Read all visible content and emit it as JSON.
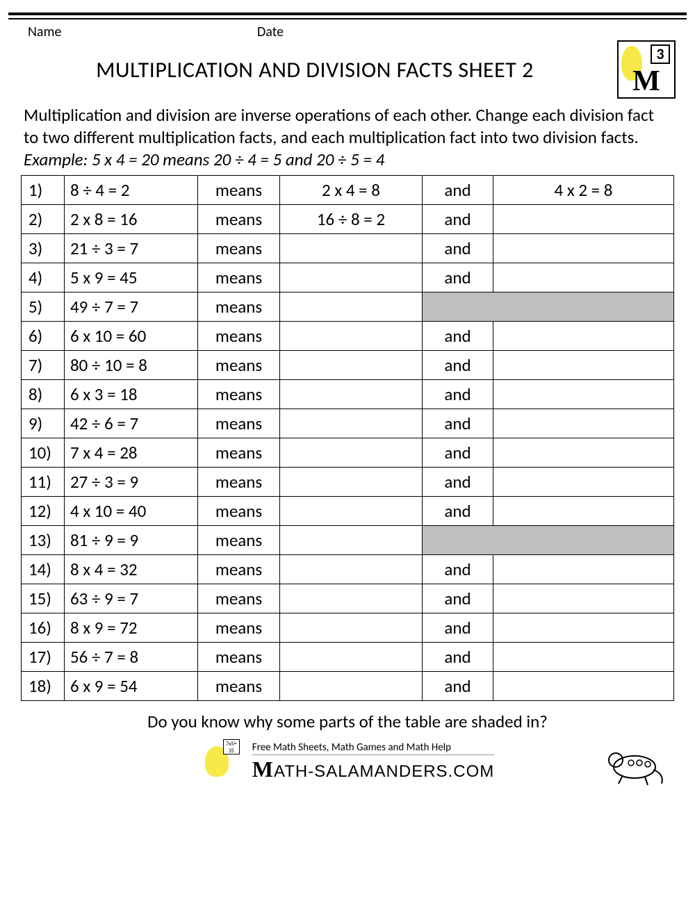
{
  "header": {
    "name_label": "Name",
    "date_label": "Date",
    "grade_number": "3"
  },
  "title": "MULTIPLICATION AND DIVISION FACTS SHEET 2",
  "instructions": {
    "text": "Multiplication and division are inverse operations of each other. Change each division fact to two different multiplication facts, and each multiplication fact into two division facts.",
    "example": "Example: 5 x 4 = 20 means 20 ÷ 4 = 5 and 20 ÷ 5 = 4"
  },
  "columns": {
    "means": "means",
    "and": "and"
  },
  "rows": [
    {
      "n": "1)",
      "fact": "8 ÷ 4 = 2",
      "a1": "2 x 4 = 8",
      "and": "and",
      "a2": "4 x 2 = 8",
      "shaded": false
    },
    {
      "n": "2)",
      "fact": "2 x 8 = 16",
      "a1": "16 ÷ 8 = 2",
      "and": "and",
      "a2": "",
      "shaded": false
    },
    {
      "n": "3)",
      "fact": "21 ÷ 3 = 7",
      "a1": "",
      "and": "and",
      "a2": "",
      "shaded": false
    },
    {
      "n": "4)",
      "fact": "5 x 9 = 45",
      "a1": "",
      "and": "and",
      "a2": "",
      "shaded": false
    },
    {
      "n": "5)",
      "fact": "49 ÷ 7 = 7",
      "a1": "",
      "and": "",
      "a2": "",
      "shaded": true
    },
    {
      "n": "6)",
      "fact": "6 x 10 = 60",
      "a1": "",
      "and": "and",
      "a2": "",
      "shaded": false
    },
    {
      "n": "7)",
      "fact": "80 ÷ 10 = 8",
      "a1": "",
      "and": "and",
      "a2": "",
      "shaded": false
    },
    {
      "n": "8)",
      "fact": "6 x 3 = 18",
      "a1": "",
      "and": "and",
      "a2": "",
      "shaded": false
    },
    {
      "n": "9)",
      "fact": "42 ÷ 6 = 7",
      "a1": "",
      "and": "and",
      "a2": "",
      "shaded": false
    },
    {
      "n": "10)",
      "fact": "7 x 4 = 28",
      "a1": "",
      "and": "and",
      "a2": "",
      "shaded": false
    },
    {
      "n": "11)",
      "fact": "27 ÷ 3 = 9",
      "a1": "",
      "and": "and",
      "a2": "",
      "shaded": false
    },
    {
      "n": "12)",
      "fact": "4 x 10 = 40",
      "a1": "",
      "and": "and",
      "a2": "",
      "shaded": false
    },
    {
      "n": "13)",
      "fact": "81 ÷ 9 = 9",
      "a1": "",
      "and": "",
      "a2": "",
      "shaded": true
    },
    {
      "n": "14)",
      "fact": "8 x 4 = 32",
      "a1": "",
      "and": "and",
      "a2": "",
      "shaded": false
    },
    {
      "n": "15)",
      "fact": "63 ÷ 9 = 7",
      "a1": "",
      "and": "and",
      "a2": "",
      "shaded": false
    },
    {
      "n": "16)",
      "fact": "8 x 9 = 72",
      "a1": "",
      "and": "and",
      "a2": "",
      "shaded": false
    },
    {
      "n": "17)",
      "fact": "56 ÷ 7 = 8",
      "a1": "",
      "and": "and",
      "a2": "",
      "shaded": false
    },
    {
      "n": "18)",
      "fact": "6 x 9 = 54",
      "a1": "",
      "and": "and",
      "a2": "",
      "shaded": false
    }
  ],
  "question": "Do you know why some parts of the table are shaded in?",
  "footer": {
    "tagline": "Free Math Sheets, Math Games and Math Help",
    "brand": "ATH-SALAMANDERS.COM",
    "board_text": "7x5=\n35"
  },
  "style": {
    "shaded_color": "#bfbfbf",
    "border_color": "#000000",
    "background": "#ffffff",
    "font_size_body": 25,
    "font_size_title": 32
  }
}
